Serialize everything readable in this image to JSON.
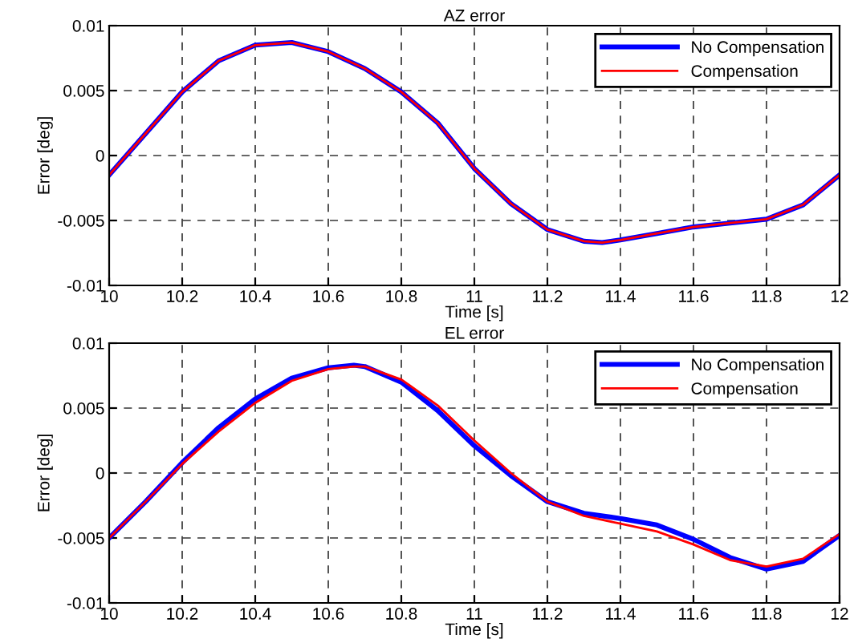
{
  "chart_data": [
    {
      "type": "line",
      "title": "AZ error",
      "xlabel": "Time [s]",
      "ylabel": "Error [deg]",
      "x": [
        10,
        10.1,
        10.2,
        10.3,
        10.4,
        10.5,
        10.6,
        10.7,
        10.8,
        10.9,
        11,
        11.1,
        11.2,
        11.3,
        11.35,
        11.4,
        11.5,
        11.6,
        11.7,
        11.8,
        11.9,
        12
      ],
      "series": [
        {
          "name": "No Compensation",
          "color": "#0000ff",
          "values": [
            -0.0015,
            0.0017,
            0.0049,
            0.0073,
            0.0085,
            0.0087,
            0.008,
            0.0067,
            0.0049,
            0.0025,
            -0.001,
            -0.0037,
            -0.0057,
            -0.0066,
            -0.0067,
            -0.0065,
            -0.006,
            -0.0055,
            -0.0052,
            -0.0049,
            -0.0038,
            -0.0015
          ]
        },
        {
          "name": "Compensation",
          "color": "#ff0000",
          "values": [
            -0.0015,
            0.0017,
            0.0049,
            0.0073,
            0.0085,
            0.0087,
            0.008,
            0.0067,
            0.0049,
            0.0025,
            -0.001,
            -0.0037,
            -0.0057,
            -0.0066,
            -0.0067,
            -0.0065,
            -0.006,
            -0.0055,
            -0.0052,
            -0.0049,
            -0.0038,
            -0.0015
          ]
        }
      ],
      "xlim": [
        10,
        12
      ],
      "xticks": [
        10,
        10.2,
        10.4,
        10.6,
        10.8,
        11,
        11.2,
        11.4,
        11.6,
        11.8,
        12
      ],
      "ylim": [
        -0.01,
        0.01
      ],
      "yticks": [
        -0.01,
        -0.005,
        0,
        0.005,
        0.01
      ],
      "grid": true,
      "legend": "top right",
      "line_style": "solid"
    },
    {
      "type": "line",
      "title": "EL error",
      "xlabel": "Time [s]",
      "ylabel": "Error [deg]",
      "x": [
        10,
        10.1,
        10.2,
        10.3,
        10.4,
        10.5,
        10.6,
        10.67,
        10.7,
        10.8,
        10.9,
        11,
        11.1,
        11.2,
        11.3,
        11.4,
        11.5,
        11.6,
        11.7,
        11.8,
        11.9,
        12
      ],
      "series": [
        {
          "name": "No Compensation",
          "color": "#0000ff",
          "values": [
            -0.005,
            -0.0022,
            0.0008,
            0.0035,
            0.0057,
            0.0073,
            0.0081,
            0.0083,
            0.0082,
            0.007,
            0.0048,
            0.0021,
            -0.0002,
            -0.0022,
            -0.0031,
            -0.0035,
            -0.004,
            -0.0051,
            -0.0065,
            -0.0074,
            -0.0068,
            -0.0048
          ]
        },
        {
          "name": "Compensation",
          "color": "#ff0000",
          "values": [
            -0.005,
            -0.0022,
            0.0007,
            0.0032,
            0.0054,
            0.0071,
            0.008,
            0.0082,
            0.0082,
            0.0072,
            0.0052,
            0.0025,
            0.0,
            -0.0022,
            -0.0033,
            -0.0039,
            -0.0045,
            -0.0055,
            -0.0067,
            -0.0072,
            -0.0066,
            -0.0047
          ]
        }
      ],
      "xlim": [
        10,
        12
      ],
      "xticks": [
        10,
        10.2,
        10.4,
        10.6,
        10.8,
        11,
        11.2,
        11.4,
        11.6,
        11.8,
        12
      ],
      "ylim": [
        -0.01,
        0.01
      ],
      "yticks": [
        -0.01,
        -0.005,
        0,
        0.005,
        0.01
      ],
      "grid": true,
      "legend": "top right",
      "line_style": "solid"
    }
  ]
}
